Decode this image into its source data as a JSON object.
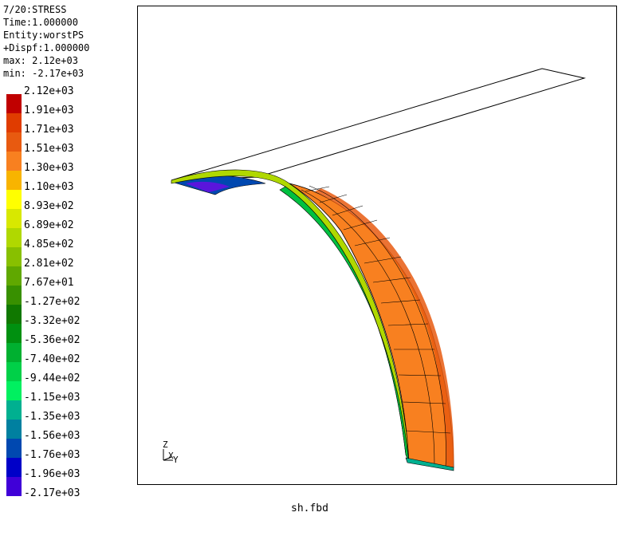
{
  "info": {
    "step": "7/20:STRESS",
    "time": "Time:1.000000",
    "entity": "Entity:worstPS",
    "dispf": "+Dispf:1.000000",
    "max": "max: 2.12e+03",
    "min": "min: -2.17e+03"
  },
  "legend": [
    {
      "label": "2.12e+03",
      "color": "#c00000"
    },
    {
      "label": "1.91e+03",
      "color": "#e03c00"
    },
    {
      "label": "1.71e+03",
      "color": "#e85a10"
    },
    {
      "label": "1.51e+03",
      "color": "#f88020"
    },
    {
      "label": "1.30e+03",
      "color": "#f8b400"
    },
    {
      "label": "1.10e+03",
      "color": "#ffff00"
    },
    {
      "label": "8.93e+02",
      "color": "#d8e800"
    },
    {
      "label": "6.89e+02",
      "color": "#b0d800"
    },
    {
      "label": "4.85e+02",
      "color": "#88c000"
    },
    {
      "label": "2.81e+02",
      "color": "#60a800"
    },
    {
      "label": "7.67e+01",
      "color": "#389000"
    },
    {
      "label": "-1.27e+02",
      "color": "#107800"
    },
    {
      "label": "-3.32e+02",
      "color": "#009010"
    },
    {
      "label": "-5.36e+02",
      "color": "#00b030"
    },
    {
      "label": "-7.40e+02",
      "color": "#00d048"
    },
    {
      "label": "-9.44e+02",
      "color": "#00f060"
    },
    {
      "label": "-1.15e+03",
      "color": "#00b090"
    },
    {
      "label": "-1.35e+03",
      "color": "#0080a0"
    },
    {
      "label": "-1.56e+03",
      "color": "#0048b0"
    },
    {
      "label": "-1.76e+03",
      "color": "#0000c8"
    },
    {
      "label": "-1.96e+03",
      "color": "#4000d8"
    },
    {
      "label": "-2.17e+03",
      "color": "#8000f0"
    }
  ],
  "triad": {
    "z": "Z",
    "x": "X",
    "y": "Y"
  },
  "filename": "sh.fbd",
  "colors": {
    "shell_face": "#f88020",
    "shell_edge": "#e85a10",
    "shell_side": "#00c040",
    "shell_top": "#b0d800",
    "shell_under": "#0048b0"
  }
}
